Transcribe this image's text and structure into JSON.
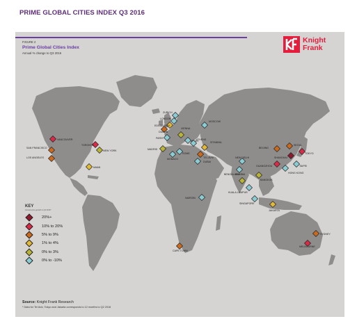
{
  "page_title": "PRIME GLOBAL CITIES INDEX Q3 2016",
  "figure": {
    "number": "FIGURE 2",
    "title": "Prime Global Cities Index",
    "subtitle": "Annual % change to Q3 2016"
  },
  "logo": {
    "line1": "Knight",
    "line2": "Frank",
    "color": "#e31d3b"
  },
  "key": {
    "title": "KEY",
    "subtitle": "Annual price growth to Q3 2016*",
    "items": [
      {
        "label": "20%+",
        "color": "#8e1a2e"
      },
      {
        "label": "10% to 20%",
        "color": "#d62c48"
      },
      {
        "label": "5% to 9%",
        "color": "#c96a1e"
      },
      {
        "label": "1% to 4%",
        "color": "#e0b83a"
      },
      {
        "label": "0% to 3%",
        "color": "#b8b33a"
      },
      {
        "label": "0% to -10%",
        "color": "#8ccbd2"
      }
    ]
  },
  "source": {
    "label": "Source:",
    "text": "Knight Frank Research"
  },
  "footnote": "* Data for Tel Aviv, Tokyo and Jakarta corresponds to 12 months to Q2 2016",
  "cities": [
    {
      "name": "VANCOUVER",
      "cat": 1
    },
    {
      "name": "TORONTO",
      "cat": 1
    },
    {
      "name": "NEW YORK",
      "cat": 4
    },
    {
      "name": "SAN FRANCISCO",
      "cat": 2
    },
    {
      "name": "LOS ANGELES",
      "cat": 2
    },
    {
      "name": "MIAMI",
      "cat": 3
    },
    {
      "name": "ZURICH",
      "cat": 5
    },
    {
      "name": "LONDON",
      "cat": 5
    },
    {
      "name": "EDINBURGH",
      "cat": 3
    },
    {
      "name": "DUBLIN",
      "cat": 2
    },
    {
      "name": "PARIS",
      "cat": 5
    },
    {
      "name": "MADRID",
      "cat": 4
    },
    {
      "name": "MONACO",
      "cat": 5
    },
    {
      "name": "ROME",
      "cat": 5
    },
    {
      "name": "VIENNA",
      "cat": 4
    },
    {
      "name": "MILAN",
      "cat": 5
    },
    {
      "name": "ATHENS",
      "cat": 5
    },
    {
      "name": "MOSCOW",
      "cat": 5
    },
    {
      "name": "ISTANBUL",
      "cat": 3
    },
    {
      "name": "TEL AVIV",
      "cat": 2
    },
    {
      "name": "DUBAI",
      "cat": 5
    },
    {
      "name": "NAIROBI",
      "cat": 5
    },
    {
      "name": "CAPE TOWN",
      "cat": 2
    },
    {
      "name": "NEW DELHI",
      "cat": 5
    },
    {
      "name": "MUMBAI",
      "cat": 5
    },
    {
      "name": "BENGALURU",
      "cat": 4
    },
    {
      "name": "BANGKOK",
      "cat": 4
    },
    {
      "name": "KUALA LUMPUR",
      "cat": 5
    },
    {
      "name": "SINGAPORE",
      "cat": 5
    },
    {
      "name": "JAKARTA",
      "cat": 3
    },
    {
      "name": "BEIJING",
      "cat": 2
    },
    {
      "name": "SEOUL",
      "cat": 2
    },
    {
      "name": "TOKYO",
      "cat": 1
    },
    {
      "name": "SHANGHAI",
      "cat": 0
    },
    {
      "name": "GUANGZHOU",
      "cat": 1
    },
    {
      "name": "TAIPEI",
      "cat": 5
    },
    {
      "name": "HONG KONG",
      "cat": 5
    },
    {
      "name": "SYDNEY",
      "cat": 2
    },
    {
      "name": "MELBOURNE",
      "cat": 1
    }
  ]
}
